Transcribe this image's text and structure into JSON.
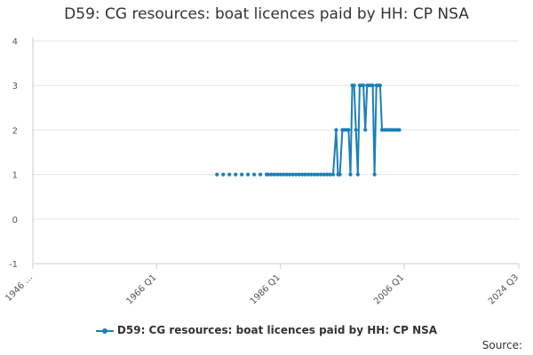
{
  "chart_data": {
    "type": "line",
    "title": "D59: CG resources: boat licences paid by HH: CP NSA",
    "xlabel": "",
    "ylabel": "",
    "ylim": [
      -1,
      4
    ],
    "yticks": [
      "4",
      "3",
      "2",
      "1",
      "0",
      "-1"
    ],
    "xlim": [
      1946.0,
      2024.5
    ],
    "xticks": [
      {
        "label": "1946 ...",
        "x": 1946.0
      },
      {
        "label": "1966 Q1",
        "x": 1966.0
      },
      {
        "label": "1986 Q1",
        "x": 1986.0
      },
      {
        "label": "2006 Q1",
        "x": 2006.0
      },
      {
        "label": "2024 Q3",
        "x": 2024.5
      }
    ],
    "grid": "horizontal",
    "legend_position": "bottom",
    "series_color": "#1a7fb8",
    "series": [
      {
        "name": "D59: CG resources: boat licences paid by HH: CP NSA",
        "markers_only": [
          {
            "x": 1975.75,
            "y": 1
          },
          {
            "x": 1976.75,
            "y": 1
          },
          {
            "x": 1977.75,
            "y": 1
          },
          {
            "x": 1978.75,
            "y": 1
          },
          {
            "x": 1979.75,
            "y": 1
          },
          {
            "x": 1980.75,
            "y": 1
          },
          {
            "x": 1981.75,
            "y": 1
          },
          {
            "x": 1982.75,
            "y": 1
          },
          {
            "x": 1983.75,
            "y": 1
          }
        ],
        "points": [
          {
            "x": 1984.0,
            "y": 1
          },
          {
            "x": 1984.5,
            "y": 1
          },
          {
            "x": 1985.0,
            "y": 1
          },
          {
            "x": 1985.5,
            "y": 1
          },
          {
            "x": 1986.0,
            "y": 1
          },
          {
            "x": 1986.5,
            "y": 1
          },
          {
            "x": 1987.0,
            "y": 1
          },
          {
            "x": 1987.5,
            "y": 1
          },
          {
            "x": 1988.0,
            "y": 1
          },
          {
            "x": 1988.5,
            "y": 1
          },
          {
            "x": 1989.0,
            "y": 1
          },
          {
            "x": 1989.5,
            "y": 1
          },
          {
            "x": 1990.0,
            "y": 1
          },
          {
            "x": 1990.5,
            "y": 1
          },
          {
            "x": 1991.0,
            "y": 1
          },
          {
            "x": 1991.5,
            "y": 1
          },
          {
            "x": 1992.0,
            "y": 1
          },
          {
            "x": 1992.5,
            "y": 1
          },
          {
            "x": 1993.0,
            "y": 1
          },
          {
            "x": 1993.5,
            "y": 1
          },
          {
            "x": 1994.0,
            "y": 1
          },
          {
            "x": 1994.5,
            "y": 1
          },
          {
            "x": 1995.0,
            "y": 2
          },
          {
            "x": 1995.3,
            "y": 1
          },
          {
            "x": 1995.6,
            "y": 1
          },
          {
            "x": 1996.0,
            "y": 2
          },
          {
            "x": 1996.3,
            "y": 2
          },
          {
            "x": 1996.7,
            "y": 2
          },
          {
            "x": 1997.0,
            "y": 2
          },
          {
            "x": 1997.3,
            "y": 1
          },
          {
            "x": 1997.6,
            "y": 3
          },
          {
            "x": 1997.9,
            "y": 3
          },
          {
            "x": 1998.2,
            "y": 2
          },
          {
            "x": 1998.5,
            "y": 1
          },
          {
            "x": 1998.8,
            "y": 3
          },
          {
            "x": 1999.1,
            "y": 3
          },
          {
            "x": 1999.4,
            "y": 3
          },
          {
            "x": 1999.7,
            "y": 2
          },
          {
            "x": 2000.0,
            "y": 3
          },
          {
            "x": 2000.3,
            "y": 3
          },
          {
            "x": 2000.6,
            "y": 3
          },
          {
            "x": 2000.9,
            "y": 3
          },
          {
            "x": 2001.2,
            "y": 1
          },
          {
            "x": 2001.5,
            "y": 3
          },
          {
            "x": 2001.8,
            "y": 3
          },
          {
            "x": 2002.1,
            "y": 3
          },
          {
            "x": 2002.4,
            "y": 2
          },
          {
            "x": 2002.8,
            "y": 2
          },
          {
            "x": 2003.2,
            "y": 2
          },
          {
            "x": 2003.6,
            "y": 2
          },
          {
            "x": 2004.0,
            "y": 2
          },
          {
            "x": 2004.4,
            "y": 2
          },
          {
            "x": 2004.8,
            "y": 2
          },
          {
            "x": 2005.2,
            "y": 2
          }
        ]
      }
    ]
  },
  "legend": {
    "label": "D59: CG resources: boat licences paid by HH: CP NSA"
  },
  "source": {
    "label": "Source:"
  }
}
